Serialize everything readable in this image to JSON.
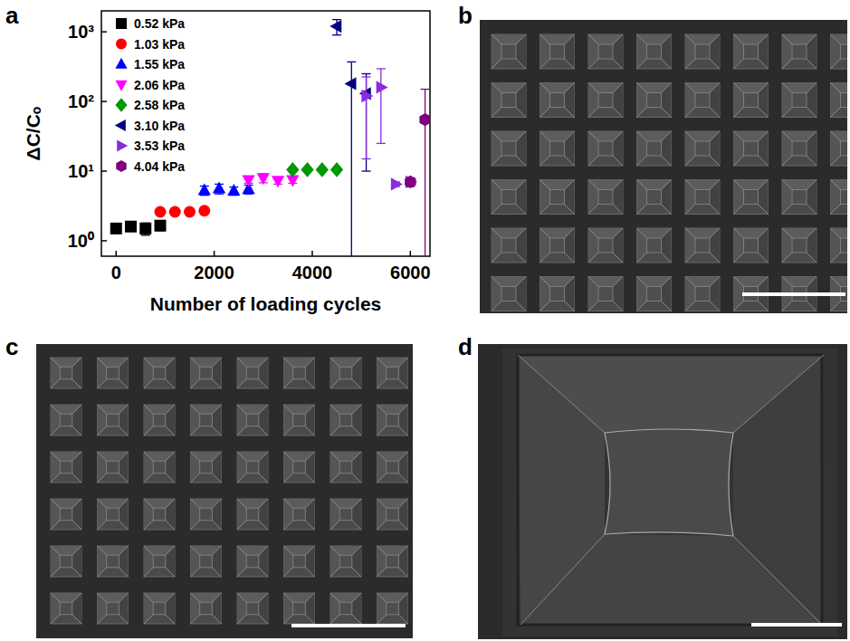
{
  "chart_data": {
    "type": "scatter",
    "x_label": "Number of loading cycles",
    "y_label": "ΔC/Cₒ",
    "log": "y",
    "legend": "upper left",
    "xlim": [
      -300,
      6400
    ],
    "ylim": [
      0.6,
      2000
    ],
    "xticks": [
      0,
      2000,
      4000,
      6000
    ],
    "yticks": [
      {
        "value": 1,
        "label": "10⁰"
      },
      {
        "value": 10,
        "label": "10¹"
      },
      {
        "value": 100,
        "label": "10²"
      },
      {
        "value": 1000,
        "label": "10³"
      }
    ],
    "series": [
      {
        "name": "0.52 kPa",
        "color": "#000000",
        "marker": "square",
        "x": [
          0,
          300,
          600,
          900
        ],
        "values": [
          1.5,
          1.6,
          1.5,
          1.65
        ],
        "errors": [
          0.1,
          0.1,
          0.3,
          0.25
        ]
      },
      {
        "name": "1.03 kPa",
        "color": "#ff0000",
        "marker": "circle",
        "x": [
          900,
          1200,
          1500,
          1800
        ],
        "values": [
          2.6,
          2.6,
          2.6,
          2.7
        ],
        "errors": [
          0.1,
          0.1,
          0.1,
          0.1
        ]
      },
      {
        "name": "1.55 kPa",
        "color": "#0000ff",
        "marker": "triangle-up",
        "x": [
          1800,
          2100,
          2400,
          2700
        ],
        "values": [
          5.3,
          5.6,
          5.2,
          5.5
        ],
        "errors": [
          0.8,
          0.9,
          0.7,
          0.8
        ]
      },
      {
        "name": "2.06 kPa",
        "color": "#ff00ff",
        "marker": "triangle-down",
        "x": [
          2700,
          3000,
          3300,
          3600
        ],
        "values": [
          7.5,
          8,
          7.3,
          7.5
        ],
        "errors": [
          0.8,
          1.2,
          0.8,
          0.8
        ]
      },
      {
        "name": "2.58 kPa",
        "color": "#009900",
        "marker": "diamond",
        "x": [
          3600,
          3900,
          4200,
          4500
        ],
        "values": [
          10.5,
          10.5,
          10.5,
          10.5
        ],
        "errors": [
          0.5,
          0.5,
          0.5,
          0.5
        ]
      },
      {
        "name": "3.10 kPa",
        "color": "#000080",
        "marker": "triangle-left",
        "x": [
          4500,
          4800,
          5100
        ],
        "values": [
          1200,
          180,
          130
        ],
        "errors": [
          300,
          190,
          120
        ]
      },
      {
        "name": "3.53 kPa",
        "color": "#8a2be2",
        "marker": "triangle-right",
        "x": [
          5100,
          5400,
          5700,
          6000
        ],
        "values": [
          120,
          160,
          6.5,
          7
        ],
        "errors": [
          105,
          135,
          0.5,
          0.8
        ]
      },
      {
        "name": "4.04 kPa",
        "color": "#800080",
        "marker": "hexagon",
        "x": [
          6000,
          6300
        ],
        "values": [
          7,
          55
        ],
        "errors": [
          1,
          95
        ]
      }
    ]
  },
  "panel_labels": [
    "a",
    "b",
    "c",
    "d"
  ]
}
